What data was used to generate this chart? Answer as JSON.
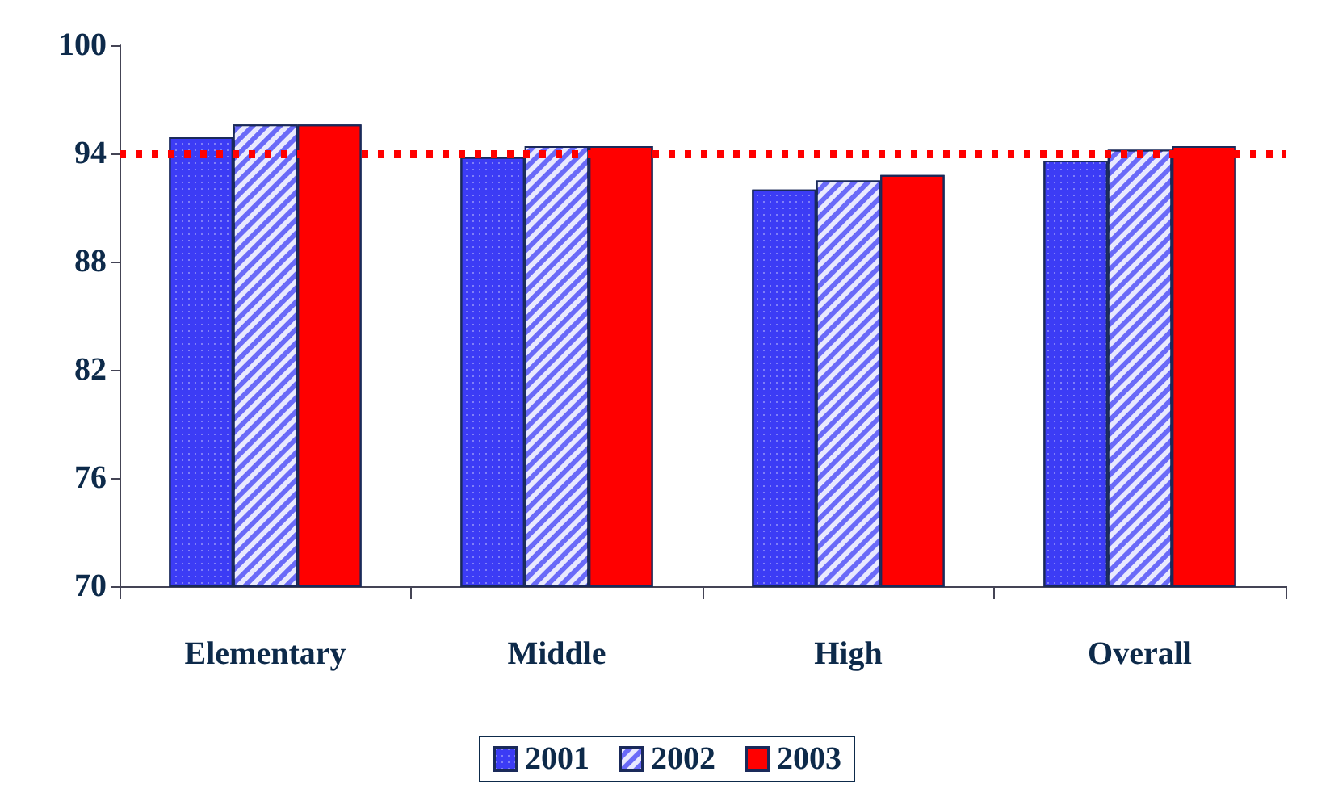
{
  "chart_data": {
    "type": "bar",
    "categories": [
      "Elementary",
      "Middle",
      "High",
      "Overall"
    ],
    "series": [
      {
        "name": "2001",
        "color": "#3c3cf5",
        "values": [
          94.9,
          93.8,
          92.0,
          93.6
        ]
      },
      {
        "name": "2002",
        "color": "#6a6af8",
        "values": [
          95.6,
          94.4,
          92.5,
          94.2
        ]
      },
      {
        "name": "2003",
        "color": "#ff0000",
        "values": [
          95.6,
          94.4,
          92.8,
          94.4
        ]
      }
    ],
    "ylim": [
      70,
      100
    ],
    "yticks": [
      70,
      76,
      82,
      88,
      94,
      100
    ],
    "ref_lines": [
      {
        "axis": "y",
        "value": 94,
        "color": "#ff0000",
        "line_style": "dotted"
      }
    ],
    "grid": false,
    "legend": "bottom"
  }
}
